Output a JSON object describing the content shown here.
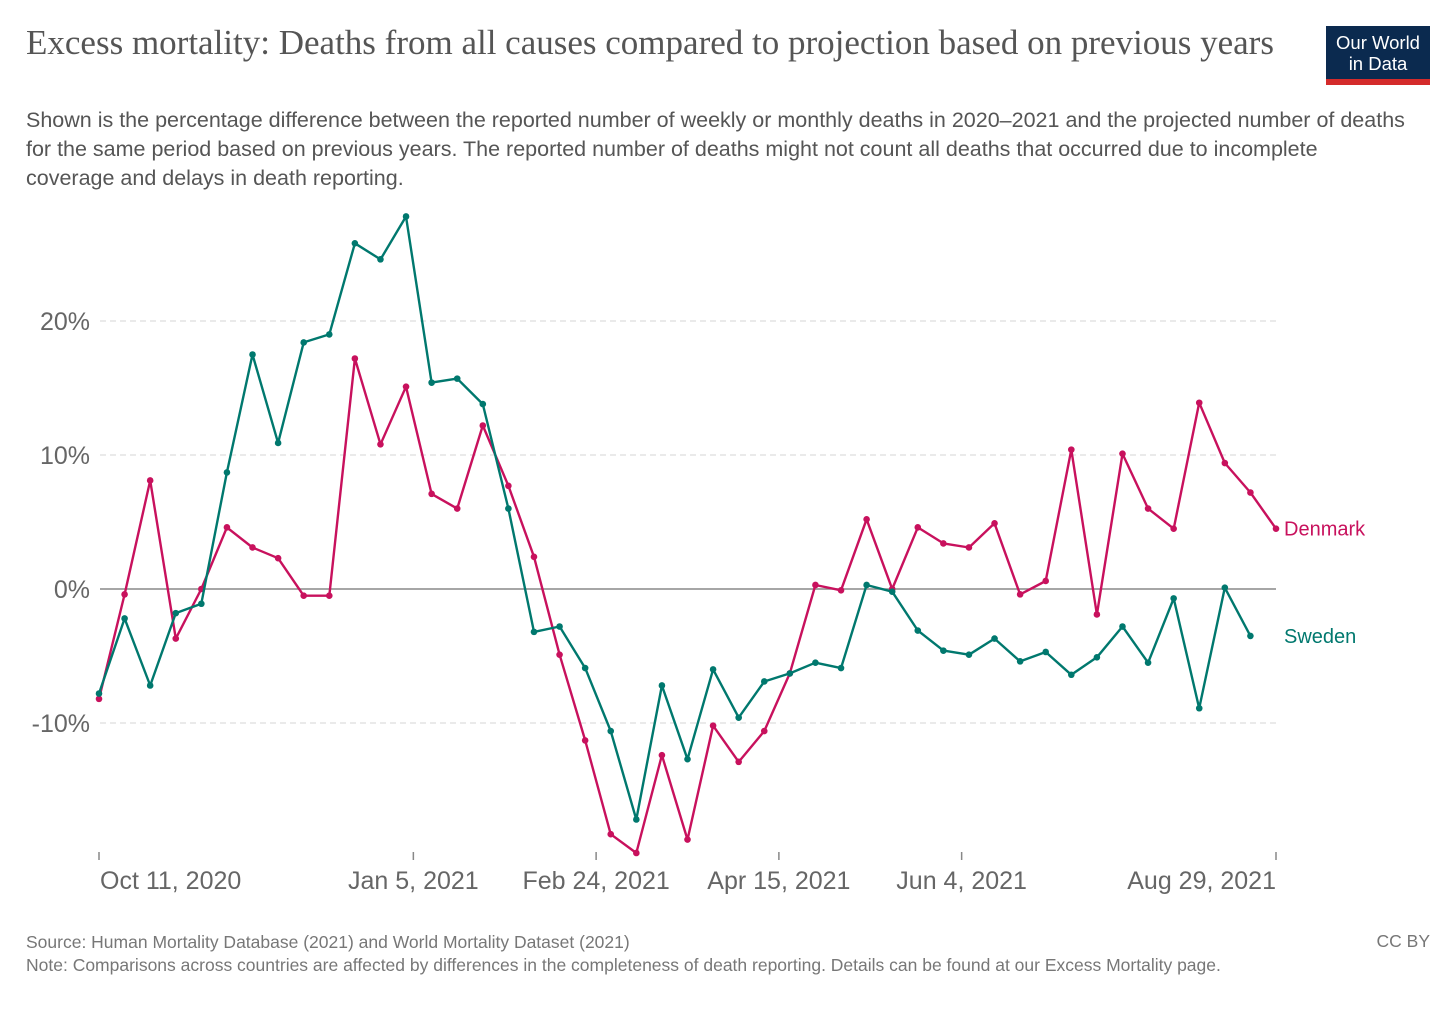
{
  "title": "Excess mortality: Deaths from all causes compared to projection based on previous years",
  "subtitle": "Shown is the percentage difference between the reported number of weekly or monthly deaths in 2020–2021 and the projected number of deaths for the same period based on previous years. The reported number of deaths might not count all deaths that occurred due to incomplete coverage and delays in death reporting.",
  "logo": {
    "line1": "Our World",
    "line2": "in Data"
  },
  "footer": {
    "source": "Source: Human Mortality Database (2021) and World Mortality Dataset (2021)",
    "note": "Note: Comparisons across countries are affected by differences in the completeness of death reporting. Details can be found at our Excess Mortality page.",
    "license": "CC BY"
  },
  "chart_data": {
    "type": "line",
    "title": "Excess mortality: Deaths from all causes compared to projection based on previous years",
    "xlabel": "",
    "ylabel": "",
    "x_unit": "weeks since Oct 11, 2020",
    "ylim": [
      -20,
      28
    ],
    "y_ticks": [
      {
        "value": 20,
        "label": "20%"
      },
      {
        "value": 10,
        "label": "10%"
      },
      {
        "value": 0,
        "label": "0%"
      },
      {
        "value": -10,
        "label": "-10%"
      }
    ],
    "x_ticks": [
      {
        "label": "Oct 11, 2020",
        "day": 0
      },
      {
        "label": "Jan 5, 2021",
        "day": 86
      },
      {
        "label": "Feb 24, 2021",
        "day": 136
      },
      {
        "label": "Apr 15, 2021",
        "day": 186
      },
      {
        "label": "Jun 4, 2021",
        "day": 236
      },
      {
        "label": "Aug 29, 2021",
        "day": 322
      }
    ],
    "grid": true,
    "legend": "right-inline",
    "series": [
      {
        "name": "Denmark",
        "color": "#c8115d",
        "values": [
          -8.2,
          -0.4,
          8.1,
          -3.7,
          0,
          4.6,
          3.1,
          2.3,
          -0.5,
          -0.5,
          17.2,
          10.8,
          15.1,
          7.1,
          6.0,
          12.2,
          7.7,
          2.4,
          -4.9,
          -11.3,
          -18.3,
          -19.7,
          -12.4,
          -18.7,
          -10.2,
          -12.9,
          -10.6,
          -6.3,
          0.3,
          -0.1,
          5.2,
          0,
          4.6,
          3.4,
          3.1,
          4.9,
          -0.4,
          0.6,
          10.4,
          -1.9,
          10.1,
          6.0,
          4.5,
          13.9,
          9.4,
          7.2,
          4.5
        ]
      },
      {
        "name": "Sweden",
        "color": "#00786e",
        "values": [
          -7.8,
          -2.2,
          -7.2,
          -1.8,
          -1.1,
          8.7,
          17.5,
          10.9,
          18.4,
          19.0,
          25.8,
          24.6,
          27.8,
          15.4,
          15.7,
          13.8,
          6.0,
          -3.2,
          -2.8,
          -5.9,
          -10.6,
          -17.2,
          -7.2,
          -12.7,
          -6.0,
          -9.6,
          -6.9,
          -6.3,
          -5.5,
          -5.9,
          0.3,
          -0.2,
          -3.1,
          -4.6,
          -4.9,
          -3.7,
          -5.4,
          -4.7,
          -6.4,
          -5.1,
          -2.8,
          -5.5,
          -0.7,
          -8.9,
          0.1,
          -3.5
        ]
      }
    ]
  }
}
